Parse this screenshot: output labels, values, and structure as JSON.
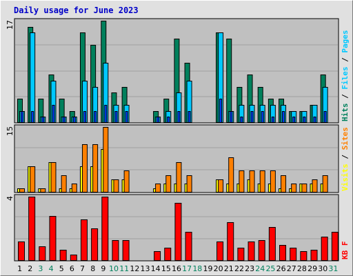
{
  "title": "Daily usage for June 2023",
  "chart_data": {
    "type": "bar",
    "title": "Daily usage for June 2023",
    "categories": [
      "1",
      "2",
      "3",
      "4",
      "5",
      "6",
      "7",
      "8",
      "9",
      "10",
      "11",
      "12",
      "13",
      "14",
      "15",
      "16",
      "17",
      "18",
      "19",
      "20",
      "21",
      "22",
      "23",
      "24",
      "25",
      "26",
      "27",
      "28",
      "29",
      "30",
      "31"
    ],
    "weekend_days": [
      "3",
      "4",
      "10",
      "11",
      "17",
      "18",
      "24",
      "25",
      "31"
    ],
    "colors": {
      "hits": "#00805c",
      "files": "#00c8ff",
      "pages": "#0040ff",
      "visits": "#ffff00",
      "sites": "#ff8000",
      "kbytes": "#ff0000",
      "weekday_label": "#000000",
      "weekend_label": "#00805c",
      "plot_bg": "#c0c0c0"
    },
    "panels": [
      {
        "name": "hits-files-pages",
        "max_label": "17",
        "ymax": 17,
        "axis_label_parts": [
          {
            "text": "Pages",
            "color": "#00c8ff"
          },
          {
            "text": " / ",
            "color": "#000000"
          },
          {
            "text": "Files",
            "color": "#00c8ff"
          },
          {
            "text": " / ",
            "color": "#000000"
          },
          {
            "text": "Hits",
            "color": "#00805c"
          }
        ],
        "series": [
          {
            "key": "hits",
            "values": [
              4,
              16,
              4,
              8,
              4,
              2,
              15,
              13,
              17,
              5,
              6,
              0,
              0,
              2,
              4,
              14,
              10,
              0,
              0,
              15,
              14,
              6,
              8,
              6,
              4,
              4,
              2,
              2,
              3,
              8,
              0
            ]
          },
          {
            "key": "files",
            "values": [
              2,
              15,
              1,
              7,
              1,
              1,
              7,
              6,
              10,
              3,
              3,
              0,
              0,
              1,
              2,
              5,
              7,
              0,
              0,
              15,
              2,
              3,
              3,
              3,
              3,
              3,
              2,
              2,
              3,
              6,
              0
            ]
          },
          {
            "key": "pages",
            "values": [
              2,
              2,
              1,
              3,
              1,
              1,
              2,
              2,
              3,
              2,
              2,
              0,
              0,
              1,
              1,
              2,
              2,
              0,
              0,
              4,
              2,
              1,
              2,
              2,
              1,
              2,
              1,
              1,
              1,
              2,
              0
            ]
          }
        ]
      },
      {
        "name": "visits-sites",
        "max_label": "15",
        "ymax": 15,
        "axis_label_parts": [
          {
            "text": "Sites",
            "color": "#ff8000"
          },
          {
            "text": " / ",
            "color": "#000000"
          },
          {
            "text": "Visits",
            "color": "#ffff00"
          }
        ],
        "series": [
          {
            "key": "visits",
            "values": [
              1,
              6,
              1,
              7,
              1,
              1,
              6,
              6,
              10,
              3,
              3,
              0,
              0,
              1,
              2,
              2,
              2,
              0,
              0,
              3,
              2,
              2,
              3,
              2,
              2,
              1,
              1,
              2,
              2,
              2,
              0
            ]
          },
          {
            "key": "sites",
            "values": [
              1,
              6,
              1,
              7,
              4,
              2,
              11,
              11,
              15,
              3,
              5,
              0,
              0,
              2,
              4,
              7,
              4,
              0,
              0,
              3,
              8,
              5,
              5,
              5,
              5,
              4,
              2,
              2,
              3,
              4,
              0
            ]
          }
        ]
      },
      {
        "name": "kbytes",
        "max_label": "4",
        "ymax": 4,
        "axis_label_parts": [
          {
            "text": "KB F",
            "color": "#ff0000"
          }
        ],
        "series": [
          {
            "key": "kbytes",
            "values": [
              1.2,
              4.0,
              0.9,
              2.8,
              0.7,
              0.4,
              2.6,
              2.0,
              4.0,
              1.3,
              1.3,
              0,
              0,
              0.6,
              0.8,
              3.6,
              1.8,
              0,
              0,
              1.2,
              2.4,
              0.8,
              1.2,
              1.3,
              2.1,
              1.0,
              0.8,
              0.6,
              0.7,
              1.5,
              1.8
            ]
          }
        ]
      }
    ]
  }
}
